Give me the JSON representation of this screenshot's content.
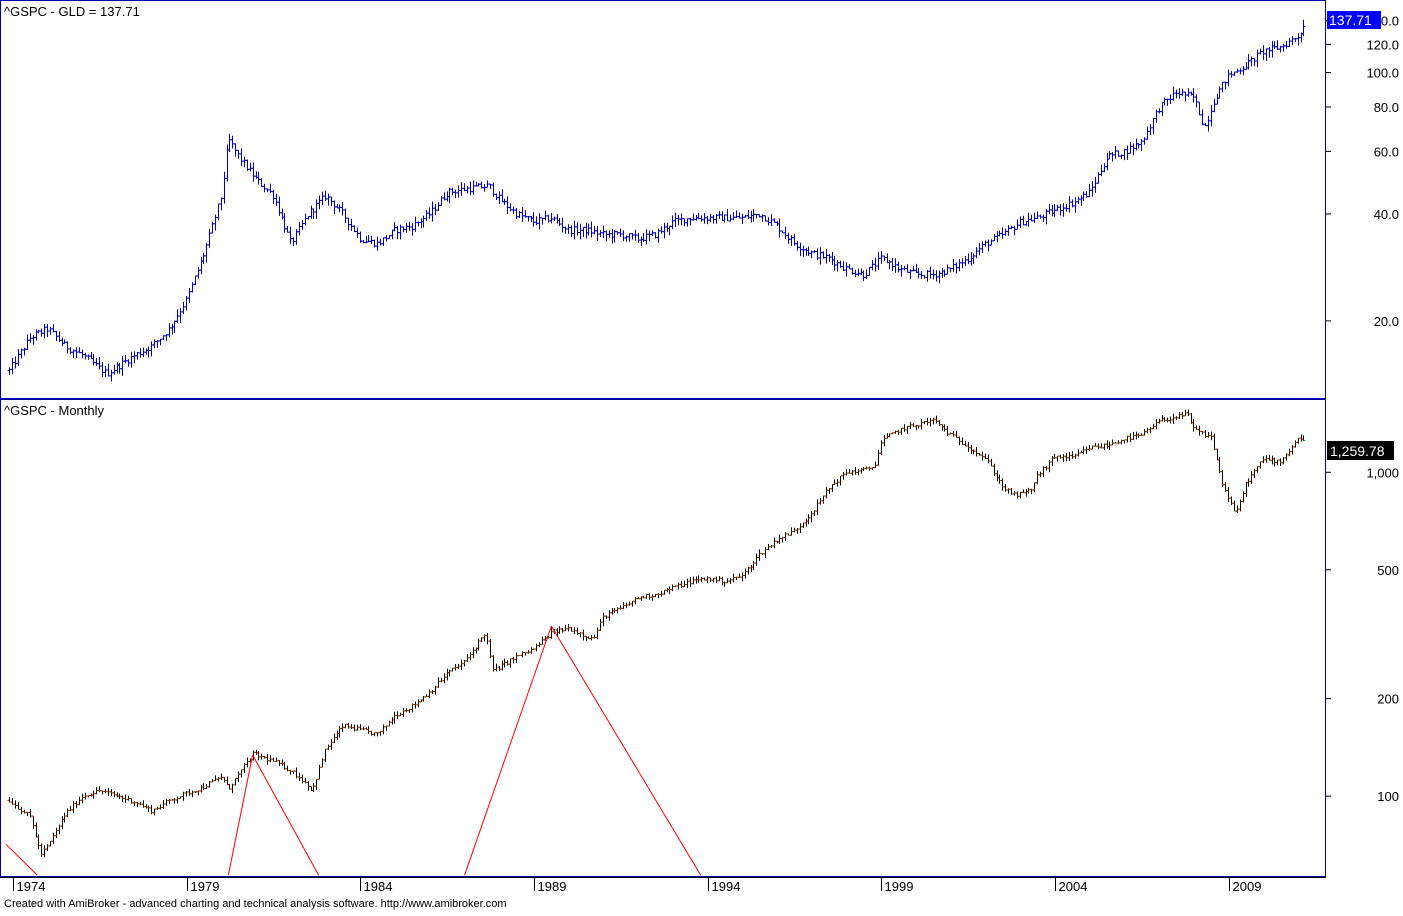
{
  "footer": "Created with AmiBroker - advanced charting and technical analysis software. http://www.amibroker.com",
  "colors": {
    "ratio_bars": "#0000cc",
    "index_bars": "#000000",
    "index_up_tick": "#00aa00",
    "index_down_tick": "#cc0000",
    "trend_lines": "#ff0000",
    "frame": "#0000aa",
    "ratio_badge_bg": "#0000ff",
    "index_badge_bg": "#000000"
  },
  "chart_data": [
    {
      "type": "line",
      "style": "ohlc-bars",
      "title": "^GSPC - GLD = 137.71",
      "last_value_label": "137.71",
      "y_scale": "log",
      "ylim": [
        13.2,
        150
      ],
      "yticks": [
        "20.0",
        "40.0",
        "60.0",
        "80.0",
        "100.0",
        "120.0",
        "140.0"
      ],
      "ytick_values": [
        20,
        40,
        60,
        80,
        100,
        120,
        140
      ],
      "xlim": [
        1973.8,
        2011.8
      ],
      "grid": false,
      "series": [
        {
          "x": [
            1973.9,
            1974.5,
            1975.0,
            1975.5,
            1976.0,
            1976.7,
            1977.5,
            1978.0,
            1978.5,
            1979.0,
            1979.5,
            1980.0,
            1980.2,
            1980.5,
            1981.0,
            1981.5,
            1982.0,
            1982.5,
            1983.0,
            1983.5,
            1984.0,
            1984.5,
            1985.0,
            1985.5,
            1986.0,
            1986.5,
            1987.0,
            1987.7,
            1988.0,
            1988.5,
            1989.0,
            1989.5,
            1990.0,
            1990.5,
            1991.0,
            1991.5,
            1992.0,
            1992.5,
            1993.0,
            1993.5,
            1994.0,
            1994.5,
            1995.0,
            1995.5,
            1996.0,
            1996.5,
            1997.0,
            1997.5,
            1998.0,
            1998.5,
            1999.0,
            1999.3,
            1999.5,
            2000.0,
            2000.5,
            2001.0,
            2001.5,
            2002.0,
            2002.5,
            2003.0,
            2003.5,
            2004.0,
            2004.5,
            2005.0,
            2005.5,
            2006.0,
            2006.5,
            2007.0,
            2007.5,
            2008.0,
            2008.3,
            2008.6,
            2008.9,
            2009.0,
            2009.5,
            2010.0,
            2010.5,
            2011.0,
            2011.2
          ],
          "y": [
            14.5,
            18,
            19,
            17,
            16,
            14.2,
            16,
            17,
            19,
            23,
            31,
            45,
            65,
            58,
            50,
            45,
            33,
            40,
            45,
            40,
            34,
            33,
            36,
            37,
            40,
            46,
            47,
            48,
            44,
            40,
            38,
            39,
            36,
            36,
            35,
            35,
            34,
            35,
            38,
            39,
            39,
            39,
            39,
            40,
            37,
            33,
            31,
            30,
            28,
            27,
            30,
            29,
            28,
            27,
            27,
            28,
            30,
            33,
            35,
            38,
            39,
            41,
            43,
            46,
            58,
            60,
            64,
            80,
            88,
            85,
            70,
            85,
            95,
            98,
            105,
            115,
            118,
            127,
            137.71
          ]
        }
      ]
    },
    {
      "type": "line",
      "style": "ohlc-bars",
      "title": "^GSPC - Monthly",
      "last_value_label": "1,259.78",
      "y_scale": "log",
      "ylim": [
        60,
        1450
      ],
      "yticks": [
        "100",
        "200",
        "500",
        "1,000"
      ],
      "ytick_values": [
        100,
        200,
        500,
        1000
      ],
      "xticks": [
        "1974",
        "1979",
        "1984",
        "1989",
        "1994",
        "1999",
        "2004",
        "2009"
      ],
      "xlim": [
        1973.8,
        2011.8
      ],
      "grid": false,
      "series": [
        {
          "x": [
            1973.9,
            1974.5,
            1974.8,
            1975.0,
            1975.5,
            1976.0,
            1976.5,
            1977.0,
            1977.5,
            1978.0,
            1978.5,
            1979.0,
            1979.5,
            1980.0,
            1980.2,
            1980.9,
            1981.5,
            1982.0,
            1982.5,
            1982.6,
            1983.0,
            1983.5,
            1984.0,
            1984.5,
            1985.0,
            1985.5,
            1986.0,
            1986.5,
            1987.0,
            1987.6,
            1987.8,
            1988.0,
            1988.5,
            1989.0,
            1989.5,
            1990.0,
            1990.7,
            1991.0,
            1991.5,
            1992.0,
            1992.5,
            1993.0,
            1993.5,
            1994.0,
            1994.5,
            1995.0,
            1995.5,
            1996.0,
            1996.5,
            1997.0,
            1997.5,
            1998.0,
            1998.6,
            1998.8,
            1999.0,
            1999.5,
            2000.0,
            2000.5,
            2001.0,
            2001.5,
            2002.0,
            2002.5,
            2002.8,
            2003.0,
            2003.3,
            2003.5,
            2004.0,
            2004.5,
            2005.0,
            2005.5,
            2006.0,
            2006.5,
            2007.0,
            2007.8,
            2008.0,
            2008.5,
            2008.8,
            2009.2,
            2009.5,
            2010.0,
            2010.5,
            2011.0,
            2011.2
          ],
          "y": [
            97,
            86,
            66,
            70,
            88,
            100,
            104,
            100,
            96,
            90,
            97,
            102,
            107,
            115,
            105,
            135,
            128,
            120,
            108,
            103,
            140,
            165,
            160,
            155,
            178,
            190,
            210,
            240,
            260,
            320,
            245,
            250,
            270,
            285,
            320,
            330,
            305,
            360,
            380,
            410,
            420,
            440,
            460,
            470,
            460,
            480,
            560,
            620,
            660,
            750,
            900,
            1000,
            1020,
            1050,
            1250,
            1350,
            1400,
            1450,
            1300,
            1200,
            1100,
            900,
            850,
            855,
            880,
            980,
            1120,
            1110,
            1190,
            1210,
            1270,
            1300,
            1440,
            1510,
            1350,
            1280,
            930,
            740,
            930,
            1100,
            1080,
            1280,
            1259.78
          ]
        }
      ],
      "annotations": [
        {
          "type": "trend-line",
          "x": [
            1973.8,
            1974.7
          ],
          "y": [
            71,
            57
          ]
        },
        {
          "type": "trend-line",
          "x": [
            1980.2,
            1980.9
          ],
          "y": [
            57,
            134
          ]
        },
        {
          "type": "trend-line",
          "x": [
            1980.9,
            1982.8
          ],
          "y": [
            134,
            57
          ]
        },
        {
          "type": "trend-line",
          "x": [
            1987.0,
            1989.5
          ],
          "y": [
            57,
            335
          ]
        },
        {
          "type": "trend-line",
          "x": [
            1989.5,
            1993.8
          ],
          "y": [
            335,
            57
          ]
        }
      ]
    }
  ]
}
